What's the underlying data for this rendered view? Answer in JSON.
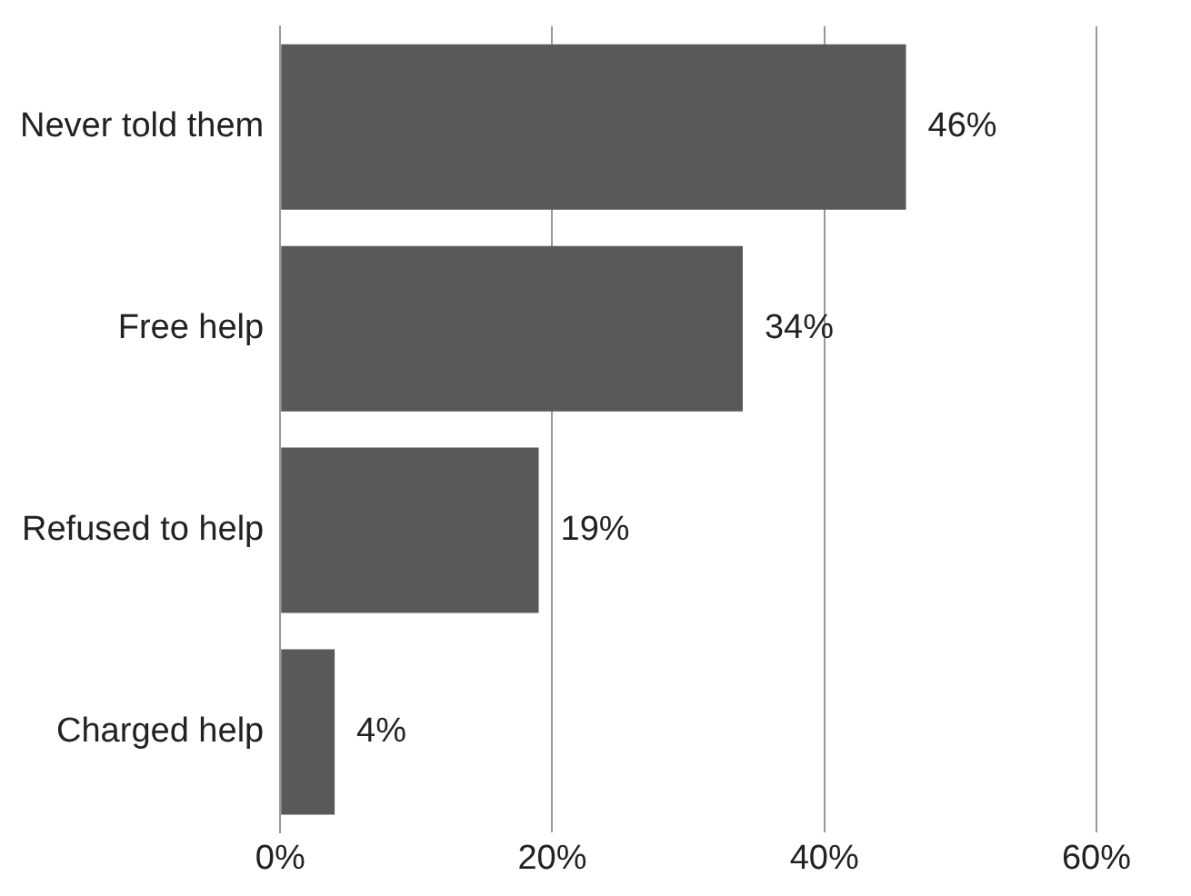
{
  "chart_data": {
    "type": "bar",
    "orientation": "horizontal",
    "categories": [
      "Never told them",
      "Free help",
      "Refused to help",
      "Charged help"
    ],
    "values": [
      46,
      34,
      19,
      4
    ],
    "color": "#595959",
    "xlim": [
      0,
      60
    ],
    "xticks": [
      {
        "value": 0,
        "label": "0%"
      },
      {
        "value": 20,
        "label": "20%"
      },
      {
        "value": 40,
        "label": "40%"
      },
      {
        "value": 60,
        "label": "60%"
      }
    ],
    "grid": "x",
    "legend": false,
    "value_labels": [
      "46%",
      "34%",
      "19%",
      "4%"
    ]
  }
}
